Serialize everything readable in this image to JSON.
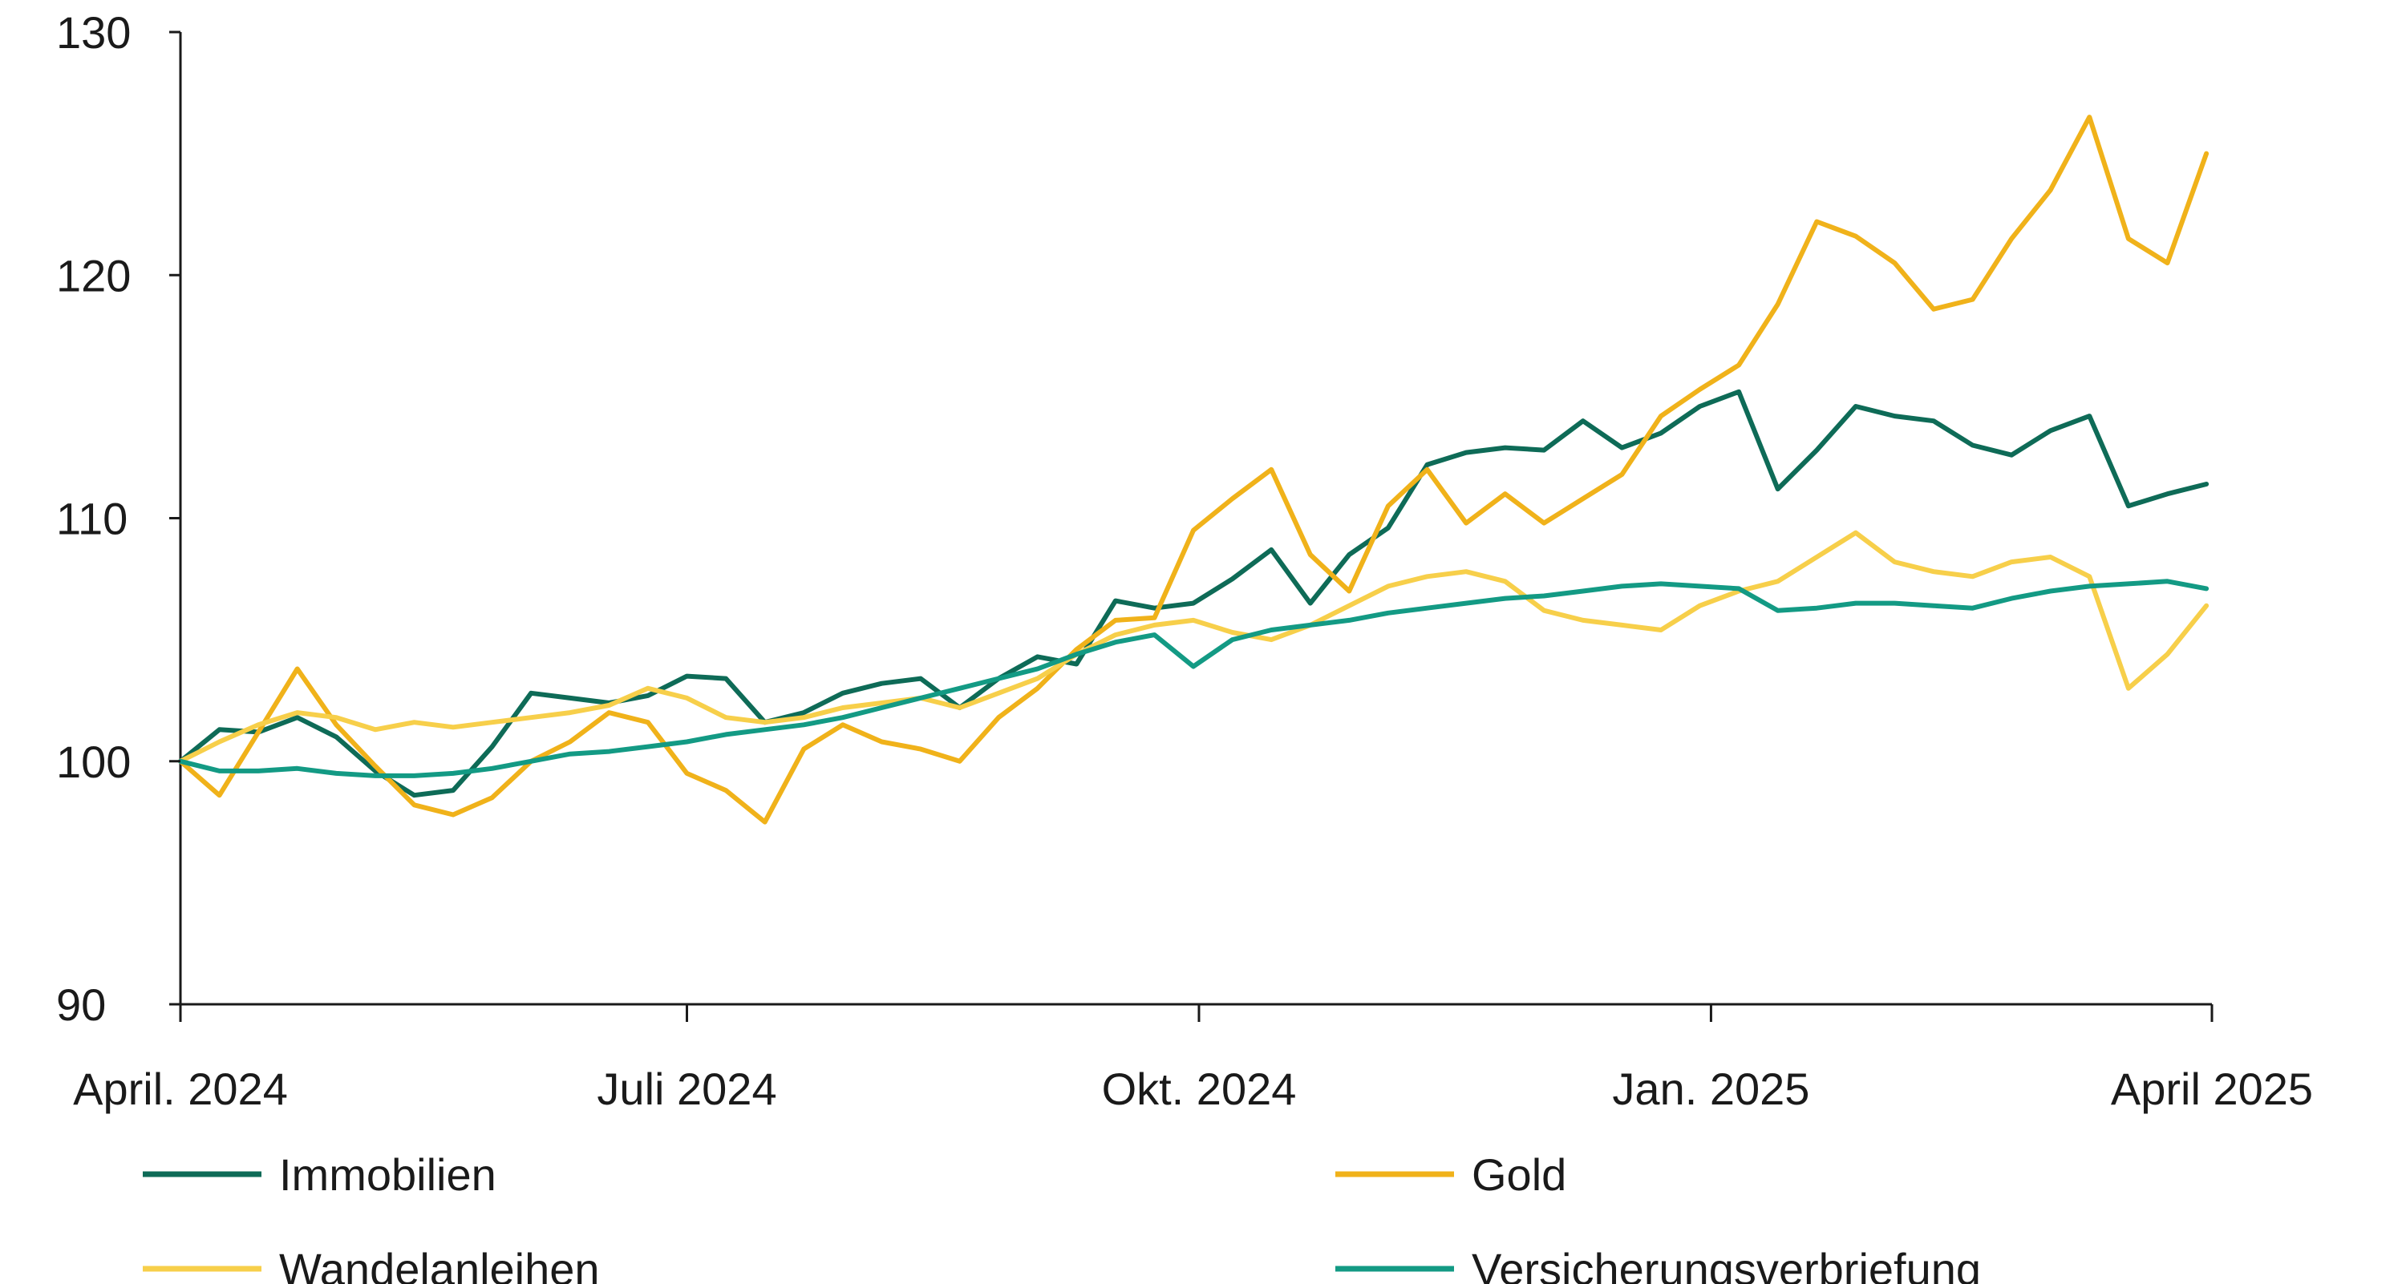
{
  "chart_data": {
    "type": "line",
    "title": "",
    "xlabel": "",
    "ylabel": "",
    "ylim": [
      90,
      130
    ],
    "y_ticks": [
      "130",
      "120",
      "110",
      "100",
      "90"
    ],
    "y_tick_values": [
      130,
      120,
      110,
      100,
      90
    ],
    "x_ticks": [
      "April. 2024",
      "Juli 2024",
      "Okt. 2024",
      "Jan. 2025",
      "April 2025"
    ],
    "x_tick_dates": [
      "2024-04-01",
      "2024-07-01",
      "2024-10-01",
      "2025-01-01",
      "2025-04-01"
    ],
    "grid": false,
    "legend_position": "bottom",
    "series": [
      {
        "name": "Immobilien",
        "color": "#0e6b57",
        "x": [
          "2024-04-01",
          "2024-04-08",
          "2024-04-15",
          "2024-04-22",
          "2024-04-29",
          "2024-05-06",
          "2024-05-13",
          "2024-05-20",
          "2024-05-27",
          "2024-06-03",
          "2024-06-10",
          "2024-06-17",
          "2024-06-24",
          "2024-07-01",
          "2024-07-08",
          "2024-07-15",
          "2024-07-22",
          "2024-07-29",
          "2024-08-05",
          "2024-08-12",
          "2024-08-19",
          "2024-08-26",
          "2024-09-02",
          "2024-09-09",
          "2024-09-16",
          "2024-09-23",
          "2024-09-30",
          "2024-10-07",
          "2024-10-14",
          "2024-10-21",
          "2024-10-28",
          "2024-11-04",
          "2024-11-11",
          "2024-11-18",
          "2024-11-25",
          "2024-12-02",
          "2024-12-09",
          "2024-12-16",
          "2024-12-23",
          "2024-12-30",
          "2025-01-06",
          "2025-01-13",
          "2025-01-20",
          "2025-01-27",
          "2025-02-03",
          "2025-02-10",
          "2025-02-17",
          "2025-02-24",
          "2025-03-03",
          "2025-03-10",
          "2025-03-17",
          "2025-03-24",
          "2025-03-31"
        ],
        "values": [
          100,
          101.3,
          101.2,
          101.8,
          101.0,
          99.6,
          98.6,
          98.8,
          100.6,
          102.8,
          102.6,
          102.4,
          102.7,
          103.5,
          103.4,
          101.6,
          102.0,
          102.8,
          103.2,
          103.4,
          102.2,
          103.4,
          104.3,
          104.0,
          106.6,
          106.3,
          106.5,
          107.5,
          108.7,
          106.5,
          108.5,
          109.6,
          112.2,
          112.7,
          112.9,
          112.8,
          114.0,
          112.9,
          113.5,
          114.6,
          115.2,
          111.2,
          112.8,
          114.6,
          114.2,
          114.0,
          113.0,
          112.6,
          113.6,
          114.2,
          110.5,
          111.0,
          111.4
        ]
      },
      {
        "name": "Gold",
        "color": "#f0b21a",
        "x": [
          "2024-04-01",
          "2024-04-08",
          "2024-04-15",
          "2024-04-22",
          "2024-04-29",
          "2024-05-06",
          "2024-05-13",
          "2024-05-20",
          "2024-05-27",
          "2024-06-03",
          "2024-06-10",
          "2024-06-17",
          "2024-06-24",
          "2024-07-01",
          "2024-07-08",
          "2024-07-15",
          "2024-07-22",
          "2024-07-29",
          "2024-08-05",
          "2024-08-12",
          "2024-08-19",
          "2024-08-26",
          "2024-09-02",
          "2024-09-09",
          "2024-09-16",
          "2024-09-23",
          "2024-09-30",
          "2024-10-07",
          "2024-10-14",
          "2024-10-21",
          "2024-10-28",
          "2024-11-04",
          "2024-11-11",
          "2024-11-18",
          "2024-11-25",
          "2024-12-02",
          "2024-12-09",
          "2024-12-16",
          "2024-12-23",
          "2024-12-30",
          "2025-01-06",
          "2025-01-13",
          "2025-01-20",
          "2025-01-27",
          "2025-02-03",
          "2025-02-10",
          "2025-02-17",
          "2025-02-24",
          "2025-03-03",
          "2025-03-10",
          "2025-03-17",
          "2025-03-24",
          "2025-03-31"
        ],
        "values": [
          100,
          98.6,
          101.2,
          103.8,
          101.5,
          99.8,
          98.2,
          97.8,
          98.5,
          100.0,
          100.8,
          102.0,
          101.6,
          99.5,
          98.8,
          97.5,
          100.5,
          101.5,
          100.8,
          100.5,
          100.0,
          101.8,
          103.0,
          104.6,
          105.8,
          105.9,
          109.5,
          110.8,
          112.0,
          108.5,
          107.0,
          110.5,
          112.0,
          109.8,
          111.0,
          109.8,
          110.8,
          111.8,
          114.2,
          115.3,
          116.3,
          118.8,
          122.2,
          121.6,
          120.5,
          118.6,
          119.0,
          121.5,
          123.5,
          126.5,
          121.5,
          120.5,
          125.0
        ]
      },
      {
        "name": "Wandelanleihen",
        "color": "#f7cf4a",
        "x": [
          "2024-04-01",
          "2024-04-08",
          "2024-04-15",
          "2024-04-22",
          "2024-04-29",
          "2024-05-06",
          "2024-05-13",
          "2024-05-20",
          "2024-05-27",
          "2024-06-03",
          "2024-06-10",
          "2024-06-17",
          "2024-06-24",
          "2024-07-01",
          "2024-07-08",
          "2024-07-15",
          "2024-07-22",
          "2024-07-29",
          "2024-08-05",
          "2024-08-12",
          "2024-08-19",
          "2024-08-26",
          "2024-09-02",
          "2024-09-09",
          "2024-09-16",
          "2024-09-23",
          "2024-09-30",
          "2024-10-07",
          "2024-10-14",
          "2024-10-21",
          "2024-10-28",
          "2024-11-04",
          "2024-11-11",
          "2024-11-18",
          "2024-11-25",
          "2024-12-02",
          "2024-12-09",
          "2024-12-16",
          "2024-12-23",
          "2024-12-30",
          "2025-01-06",
          "2025-01-13",
          "2025-01-20",
          "2025-01-27",
          "2025-02-03",
          "2025-02-10",
          "2025-02-17",
          "2025-02-24",
          "2025-03-03",
          "2025-03-10",
          "2025-03-17",
          "2025-03-24",
          "2025-03-31"
        ],
        "values": [
          100,
          100.8,
          101.5,
          102.0,
          101.8,
          101.3,
          101.6,
          101.4,
          101.6,
          101.8,
          102.0,
          102.3,
          103.0,
          102.6,
          101.8,
          101.6,
          101.8,
          102.2,
          102.4,
          102.6,
          102.2,
          102.8,
          103.4,
          104.4,
          105.2,
          105.6,
          105.8,
          105.3,
          105.0,
          105.6,
          106.4,
          107.2,
          107.6,
          107.8,
          107.4,
          106.2,
          105.8,
          105.6,
          105.4,
          106.4,
          107.0,
          107.4,
          108.4,
          109.4,
          108.2,
          107.8,
          107.6,
          108.2,
          108.4,
          107.6,
          103.0,
          104.4,
          106.4
        ]
      },
      {
        "name": "Versicherungsverbriefung",
        "color": "#139a84",
        "x": [
          "2024-04-01",
          "2024-04-08",
          "2024-04-15",
          "2024-04-22",
          "2024-04-29",
          "2024-05-06",
          "2024-05-13",
          "2024-05-20",
          "2024-05-27",
          "2024-06-03",
          "2024-06-10",
          "2024-06-17",
          "2024-06-24",
          "2024-07-01",
          "2024-07-08",
          "2024-07-15",
          "2024-07-22",
          "2024-07-29",
          "2024-08-05",
          "2024-08-12",
          "2024-08-19",
          "2024-08-26",
          "2024-09-02",
          "2024-09-09",
          "2024-09-16",
          "2024-09-23",
          "2024-09-30",
          "2024-10-07",
          "2024-10-14",
          "2024-10-21",
          "2024-10-28",
          "2024-11-04",
          "2024-11-11",
          "2024-11-18",
          "2024-11-25",
          "2024-12-02",
          "2024-12-09",
          "2024-12-16",
          "2024-12-23",
          "2024-12-30",
          "2025-01-06",
          "2025-01-13",
          "2025-01-20",
          "2025-01-27",
          "2025-02-03",
          "2025-02-10",
          "2025-02-17",
          "2025-02-24",
          "2025-03-03",
          "2025-03-10",
          "2025-03-17",
          "2025-03-24",
          "2025-03-31"
        ],
        "values": [
          100,
          99.6,
          99.6,
          99.7,
          99.5,
          99.4,
          99.4,
          99.5,
          99.7,
          100.0,
          100.3,
          100.4,
          100.6,
          100.8,
          101.1,
          101.3,
          101.5,
          101.8,
          102.2,
          102.6,
          103.0,
          103.4,
          103.8,
          104.4,
          104.9,
          105.2,
          103.9,
          105.0,
          105.4,
          105.6,
          105.8,
          106.1,
          106.3,
          106.5,
          106.7,
          106.8,
          107.0,
          107.2,
          107.3,
          107.2,
          107.1,
          106.2,
          106.3,
          106.5,
          106.5,
          106.4,
          106.3,
          106.7,
          107.0,
          107.2,
          107.3,
          107.4,
          107.1
        ]
      }
    ]
  }
}
